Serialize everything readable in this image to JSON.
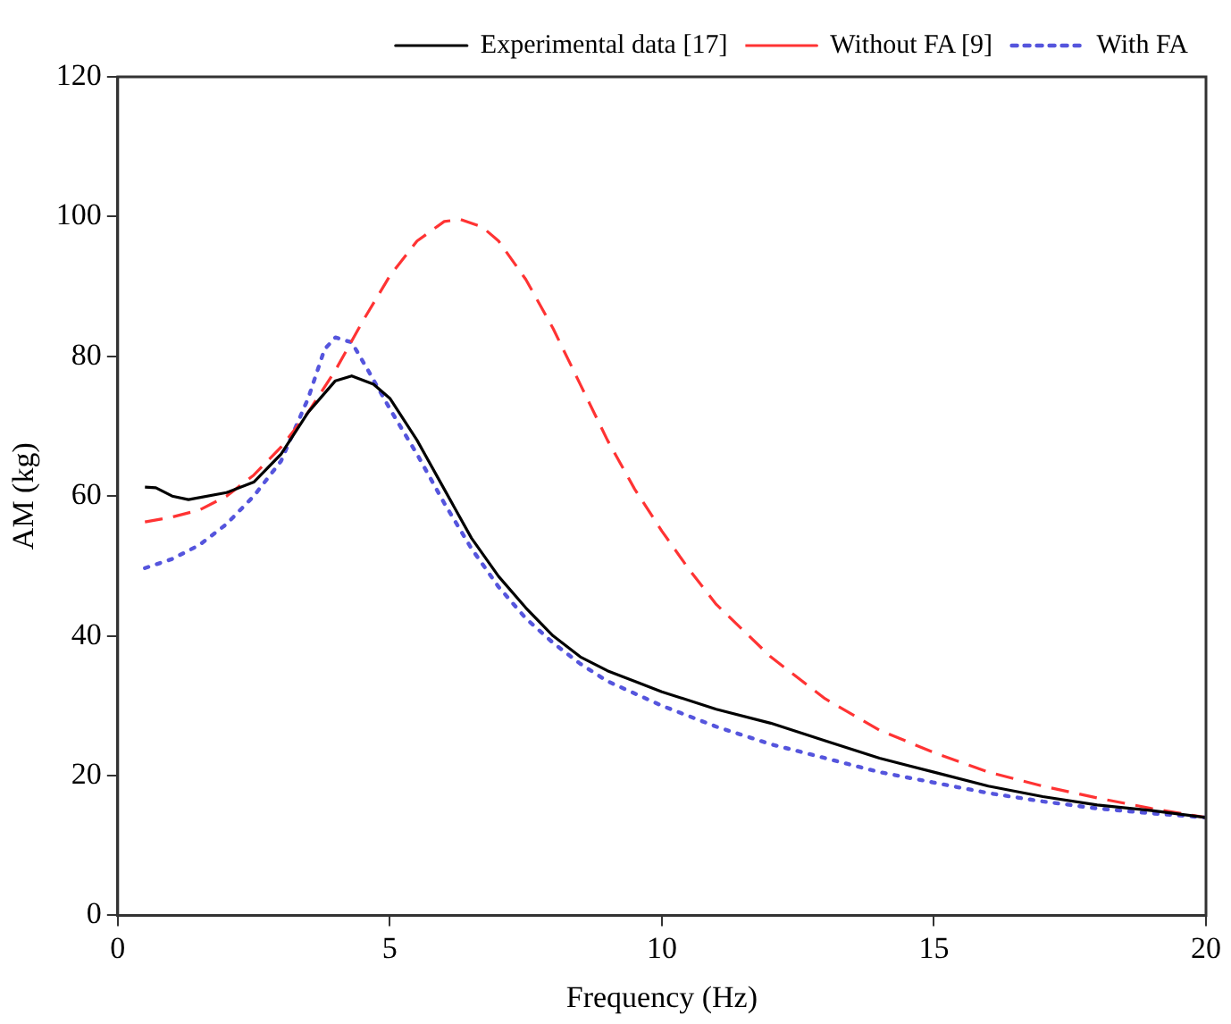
{
  "chart_data": {
    "type": "line",
    "xlabel": "Frequency (Hz)",
    "ylabel": "AM (kg)",
    "xlim": [
      0,
      20
    ],
    "xticks": [
      0,
      5,
      10,
      15,
      20
    ],
    "ylim": [
      0,
      120
    ],
    "yticks": [
      0,
      20,
      40,
      60,
      80,
      100,
      120
    ],
    "grid": false,
    "legend": "top right",
    "marker": "none",
    "series": [
      {
        "name": "Experimental data [17]",
        "color": "#000000",
        "line_style": "solid",
        "x": [
          0.5,
          0.7,
          1,
          1.3,
          2,
          2.5,
          3,
          3.5,
          4,
          4.3,
          4.7,
          5,
          5.5,
          6,
          6.5,
          7,
          7.5,
          8,
          8.5,
          9,
          10,
          11,
          12,
          13,
          14,
          15,
          16,
          17,
          18,
          19,
          20
        ],
        "values": [
          61.3,
          61.2,
          60,
          59.5,
          60.5,
          62,
          66,
          72,
          76.5,
          77.2,
          76,
          74,
          68,
          61,
          54,
          48.5,
          44,
          40,
          37,
          35,
          32,
          29.5,
          27.5,
          25,
          22.5,
          20.5,
          18.5,
          17,
          15.8,
          15,
          14
        ]
      },
      {
        "name": "Without FA [9]",
        "color": "#ff3333",
        "line_style": "dashed",
        "x": [
          0.5,
          1,
          1.5,
          2,
          2.5,
          3,
          3.5,
          4,
          4.5,
          5,
          5.5,
          6,
          6.3,
          6.7,
          7,
          7.5,
          8,
          8.5,
          9,
          9.5,
          10,
          10.5,
          11,
          12,
          13,
          14,
          15,
          16,
          17,
          18,
          19,
          20
        ],
        "values": [
          56.3,
          57,
          58,
          60,
          63,
          67,
          72,
          78,
          85,
          91.5,
          96.5,
          99.3,
          99.6,
          98.5,
          96.5,
          91,
          84,
          76,
          68,
          61,
          55,
          49.5,
          44.5,
          37,
          31,
          26.5,
          23.3,
          20.5,
          18.5,
          16.8,
          15.3,
          14
        ]
      },
      {
        "name": "With FA",
        "color": "#5555dd",
        "line_style": "dotted",
        "x": [
          0.5,
          1,
          1.5,
          2,
          2.5,
          3,
          3.5,
          3.8,
          4,
          4.3,
          4.6,
          5,
          5.5,
          6,
          6.5,
          7,
          7.5,
          8,
          8.5,
          9,
          10,
          11,
          12,
          13,
          14,
          15,
          16,
          17,
          18,
          19,
          20
        ],
        "values": [
          49.7,
          51,
          53,
          56,
          60,
          65,
          74,
          81,
          82.7,
          82,
          78,
          72.5,
          66,
          59,
          52.5,
          47,
          42.5,
          39,
          36,
          33.5,
          30,
          27,
          24.5,
          22.5,
          20.5,
          19,
          17.5,
          16.3,
          15.3,
          14.6,
          14
        ]
      }
    ]
  }
}
